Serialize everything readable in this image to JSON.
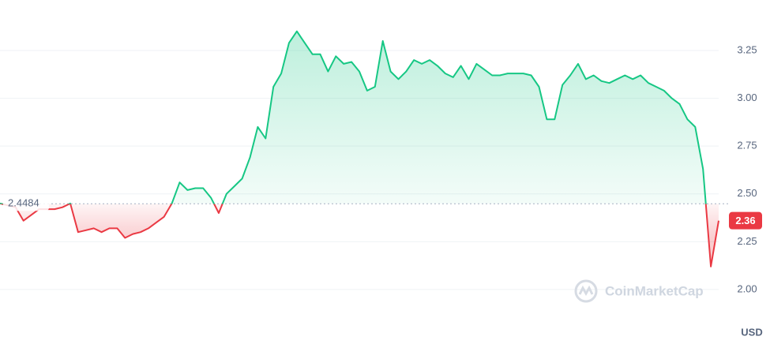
{
  "chart_data": {
    "type": "line",
    "values": [
      2.45,
      2.44,
      2.43,
      2.36,
      2.39,
      2.42,
      2.42,
      2.42,
      2.43,
      2.45,
      2.3,
      2.31,
      2.32,
      2.3,
      2.32,
      2.32,
      2.27,
      2.29,
      2.3,
      2.32,
      2.35,
      2.38,
      2.45,
      2.56,
      2.52,
      2.53,
      2.53,
      2.48,
      2.4,
      2.5,
      2.54,
      2.58,
      2.69,
      2.85,
      2.79,
      3.06,
      3.13,
      3.29,
      3.35,
      3.29,
      3.23,
      3.23,
      3.14,
      3.22,
      3.18,
      3.19,
      3.14,
      3.04,
      3.06,
      3.3,
      3.14,
      3.1,
      3.14,
      3.2,
      3.18,
      3.2,
      3.17,
      3.13,
      3.11,
      3.17,
      3.1,
      3.18,
      3.15,
      3.12,
      3.12,
      3.13,
      3.13,
      3.13,
      3.12,
      3.06,
      2.89,
      2.89,
      3.07,
      3.12,
      3.18,
      3.1,
      3.12,
      3.09,
      3.08,
      3.1,
      3.12,
      3.1,
      3.12,
      3.08,
      3.06,
      3.04,
      3.0,
      2.97,
      2.89,
      2.85,
      2.63,
      2.12,
      2.36
    ],
    "baseline": 2.4484,
    "current_price": 2.36,
    "ylim": [
      1.715,
      3.514
    ],
    "yticks": [
      {
        "value": 2,
        "label": "2.00"
      },
      2.25,
      {
        "value": 2.5,
        "label": "2.50"
      },
      2.75,
      {
        "value": 3,
        "label": "3.00"
      },
      3.25
    ],
    "unit": "USD",
    "watermark": "CoinMarketCap",
    "up_color": "#16c784",
    "down_color": "#ea3943",
    "grid": true
  }
}
